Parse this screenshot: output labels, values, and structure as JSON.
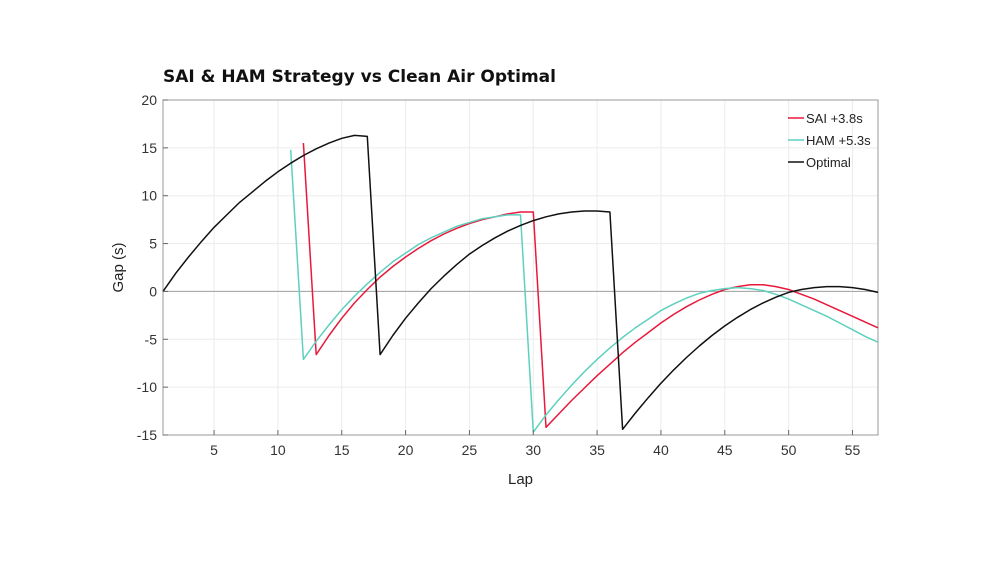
{
  "chart_data": {
    "type": "line",
    "title": "SAI & HAM Strategy vs Clean Air Optimal",
    "xlabel": "Lap",
    "ylabel": "Gap (s)",
    "xlim": [
      1,
      57
    ],
    "ylim": [
      -15,
      20
    ],
    "xticks": [
      5,
      10,
      15,
      20,
      25,
      30,
      35,
      40,
      45,
      50,
      55
    ],
    "yticks": [
      -15,
      -10,
      -5,
      0,
      5,
      10,
      15,
      20
    ],
    "grid": true,
    "legend_position": "top-right",
    "zero_line_color": "#aaaaaa",
    "series": [
      {
        "name": "SAI +3.8s",
        "color": "#e8193c",
        "points": [
          [
            12,
            15.5
          ],
          [
            13,
            -6.6
          ],
          [
            14,
            -4.6
          ],
          [
            15,
            -2.8
          ],
          [
            16,
            -1.2
          ],
          [
            17,
            0.2
          ],
          [
            18,
            1.5
          ],
          [
            19,
            2.6
          ],
          [
            20,
            3.6
          ],
          [
            21,
            4.5
          ],
          [
            22,
            5.3
          ],
          [
            23,
            6.0
          ],
          [
            24,
            6.6
          ],
          [
            25,
            7.1
          ],
          [
            26,
            7.5
          ],
          [
            27,
            7.8
          ],
          [
            28,
            8.1
          ],
          [
            29,
            8.3
          ],
          [
            30,
            8.3
          ],
          [
            31,
            -14.2
          ],
          [
            32,
            -12.8
          ],
          [
            33,
            -11.4
          ],
          [
            34,
            -10.1
          ],
          [
            35,
            -8.8
          ],
          [
            36,
            -7.6
          ],
          [
            37,
            -6.4
          ],
          [
            38,
            -5.3
          ],
          [
            39,
            -4.3
          ],
          [
            40,
            -3.3
          ],
          [
            41,
            -2.4
          ],
          [
            42,
            -1.6
          ],
          [
            43,
            -0.9
          ],
          [
            44,
            -0.3
          ],
          [
            45,
            0.2
          ],
          [
            46,
            0.5
          ],
          [
            47,
            0.7
          ],
          [
            48,
            0.7
          ],
          [
            49,
            0.5
          ],
          [
            50,
            0.2
          ],
          [
            51,
            -0.3
          ],
          [
            52,
            -0.8
          ],
          [
            53,
            -1.4
          ],
          [
            54,
            -2.0
          ],
          [
            55,
            -2.6
          ],
          [
            56,
            -3.2
          ],
          [
            57,
            -3.8
          ]
        ]
      },
      {
        "name": "HAM +5.3s",
        "color": "#5ed0be",
        "points": [
          [
            11,
            14.8
          ],
          [
            12,
            -7.1
          ],
          [
            13,
            -5.2
          ],
          [
            14,
            -3.5
          ],
          [
            15,
            -1.9
          ],
          [
            16,
            -0.5
          ],
          [
            17,
            0.8
          ],
          [
            18,
            2.0
          ],
          [
            19,
            3.1
          ],
          [
            20,
            4.0
          ],
          [
            21,
            4.9
          ],
          [
            22,
            5.6
          ],
          [
            23,
            6.2
          ],
          [
            24,
            6.8
          ],
          [
            25,
            7.2
          ],
          [
            26,
            7.6
          ],
          [
            27,
            7.8
          ],
          [
            28,
            8.0
          ],
          [
            29,
            8.0
          ],
          [
            30,
            -14.7
          ],
          [
            31,
            -12.9
          ],
          [
            32,
            -11.3
          ],
          [
            33,
            -9.8
          ],
          [
            34,
            -8.4
          ],
          [
            35,
            -7.1
          ],
          [
            36,
            -5.9
          ],
          [
            37,
            -4.8
          ],
          [
            38,
            -3.8
          ],
          [
            39,
            -2.9
          ],
          [
            40,
            -2.0
          ],
          [
            41,
            -1.3
          ],
          [
            42,
            -0.7
          ],
          [
            43,
            -0.2
          ],
          [
            44,
            0.1
          ],
          [
            45,
            0.3
          ],
          [
            46,
            0.4
          ],
          [
            47,
            0.3
          ],
          [
            48,
            0.1
          ],
          [
            49,
            -0.3
          ],
          [
            50,
            -0.8
          ],
          [
            51,
            -1.4
          ],
          [
            52,
            -2.0
          ],
          [
            53,
            -2.6
          ],
          [
            54,
            -3.3
          ],
          [
            55,
            -4.0
          ],
          [
            56,
            -4.7
          ],
          [
            57,
            -5.3
          ]
        ]
      },
      {
        "name": "Optimal",
        "color": "#111111",
        "points": [
          [
            1,
            0
          ],
          [
            2,
            1.9
          ],
          [
            3,
            3.6
          ],
          [
            4,
            5.2
          ],
          [
            5,
            6.7
          ],
          [
            6,
            8.0
          ],
          [
            7,
            9.3
          ],
          [
            8,
            10.4
          ],
          [
            9,
            11.5
          ],
          [
            10,
            12.5
          ],
          [
            11,
            13.4
          ],
          [
            12,
            14.2
          ],
          [
            13,
            14.9
          ],
          [
            14,
            15.5
          ],
          [
            15,
            16.0
          ],
          [
            16,
            16.3
          ],
          [
            17,
            16.2
          ],
          [
            18,
            -6.6
          ],
          [
            19,
            -4.6
          ],
          [
            20,
            -2.8
          ],
          [
            21,
            -1.2
          ],
          [
            22,
            0.3
          ],
          [
            23,
            1.6
          ],
          [
            24,
            2.8
          ],
          [
            25,
            3.9
          ],
          [
            26,
            4.8
          ],
          [
            27,
            5.6
          ],
          [
            28,
            6.3
          ],
          [
            29,
            6.9
          ],
          [
            30,
            7.4
          ],
          [
            31,
            7.8
          ],
          [
            32,
            8.1
          ],
          [
            33,
            8.3
          ],
          [
            34,
            8.4
          ],
          [
            35,
            8.4
          ],
          [
            36,
            8.3
          ],
          [
            37,
            -14.4
          ],
          [
            38,
            -12.7
          ],
          [
            39,
            -11.1
          ],
          [
            40,
            -9.6
          ],
          [
            41,
            -8.2
          ],
          [
            42,
            -6.9
          ],
          [
            43,
            -5.7
          ],
          [
            44,
            -4.6
          ],
          [
            45,
            -3.6
          ],
          [
            46,
            -2.7
          ],
          [
            47,
            -1.9
          ],
          [
            48,
            -1.2
          ],
          [
            49,
            -0.6
          ],
          [
            50,
            -0.1
          ],
          [
            51,
            0.2
          ],
          [
            52,
            0.4
          ],
          [
            53,
            0.5
          ],
          [
            54,
            0.5
          ],
          [
            55,
            0.4
          ],
          [
            56,
            0.2
          ],
          [
            57,
            -0.1
          ]
        ]
      }
    ]
  }
}
